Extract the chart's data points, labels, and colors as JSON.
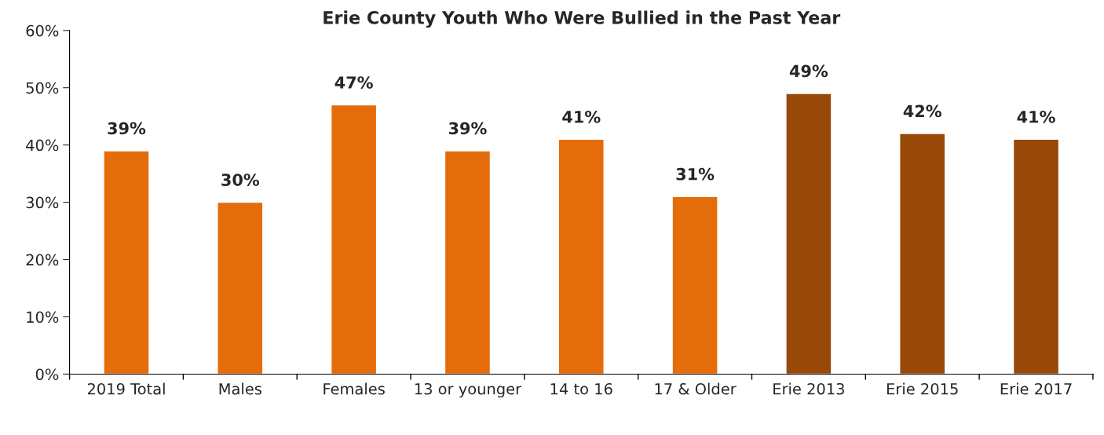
{
  "chart_data": {
    "type": "bar",
    "title": "Erie County Youth Who Were Bullied in the Past Year",
    "categories": [
      "2019 Total",
      "Males",
      "Females",
      "13 or younger",
      "14 to 16",
      "17 & Older",
      "Erie 2013",
      "Erie 2015",
      "Erie 2017"
    ],
    "values": [
      39,
      30,
      47,
      39,
      41,
      31,
      49,
      42,
      41
    ],
    "colors": [
      "#e46c0a",
      "#e46c0a",
      "#e46c0a",
      "#e46c0a",
      "#e46c0a",
      "#e46c0a",
      "#984807",
      "#984807",
      "#984807"
    ],
    "value_labels": [
      "39%",
      "30%",
      "47%",
      "39%",
      "41%",
      "31%",
      "49%",
      "42%",
      "41%"
    ],
    "ylim": [
      0,
      60
    ],
    "yticks": [
      {
        "value": 0,
        "label": "0%"
      },
      {
        "value": 10,
        "label": "10%"
      },
      {
        "value": 20,
        "label": "20%"
      },
      {
        "value": 30,
        "label": "30%"
      },
      {
        "value": 40,
        "label": "40%"
      },
      {
        "value": 50,
        "label": "50%"
      },
      {
        "value": 60,
        "label": "60%"
      }
    ],
    "grid": false,
    "legend": false
  }
}
